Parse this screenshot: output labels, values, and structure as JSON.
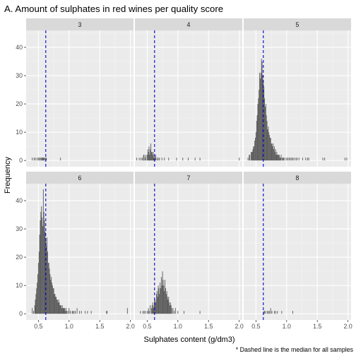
{
  "chart_data": {
    "type": "bar",
    "chart_kind": "faceted-histogram",
    "title": "A. Amount of sulphates in red wines per quality score",
    "xlabel": "Sulphates content (g/dm3)",
    "ylabel": "Frequency",
    "caption": "* Dashed line is the median for all samples",
    "xlim": [
      0.3,
      2.05
    ],
    "ylim": [
      -2.2,
      46
    ],
    "x_ticks": [
      0.5,
      1.0,
      1.5,
      2.0
    ],
    "x_tick_labels": [
      "0.5",
      "1.0",
      "1.5",
      "2.0"
    ],
    "y_ticks": [
      0,
      10,
      20,
      30,
      40
    ],
    "y_tick_labels": [
      "0",
      "10",
      "20",
      "30",
      "40"
    ],
    "bin_width": 0.01,
    "median_line": {
      "value": 0.62,
      "style": "dashed",
      "color": "#0000cc"
    },
    "grid": true,
    "colors": {
      "bar_fill": "#595959",
      "panel_background": "#ebebeb",
      "strip_background": "#d9d9d9",
      "grid_major": "#ffffff",
      "grid_minor": "#f5f5f5"
    },
    "facets": [
      {
        "label": "3",
        "x": [
          0.4,
          0.43,
          0.45,
          0.48,
          0.5,
          0.52,
          0.53,
          0.55,
          0.56,
          0.57,
          0.58,
          0.59,
          0.6,
          0.62,
          0.63,
          0.86
        ],
        "y": [
          1,
          1,
          1,
          1,
          1,
          1,
          1,
          1,
          1,
          1,
          1,
          1,
          1,
          1,
          1,
          1
        ]
      },
      {
        "label": "4",
        "x": [
          0.33,
          0.37,
          0.4,
          0.42,
          0.44,
          0.45,
          0.47,
          0.48,
          0.5,
          0.51,
          0.52,
          0.53,
          0.54,
          0.55,
          0.56,
          0.57,
          0.58,
          0.59,
          0.6,
          0.61,
          0.62,
          0.63,
          0.64,
          0.66,
          0.68,
          0.7,
          0.74,
          0.78,
          0.85,
          0.98,
          1.08,
          1.17,
          1.28,
          1.36,
          2.0
        ],
        "y": [
          1,
          1,
          1,
          1,
          2,
          2,
          1,
          2,
          2,
          4,
          3,
          5,
          2,
          4,
          6,
          3,
          3,
          2,
          3,
          1,
          2,
          1,
          2,
          1,
          1,
          1,
          1,
          1,
          1,
          1,
          1,
          1,
          1,
          1,
          1
        ]
      },
      {
        "label": "5",
        "x": [
          0.37,
          0.39,
          0.4,
          0.42,
          0.43,
          0.44,
          0.45,
          0.46,
          0.47,
          0.48,
          0.49,
          0.5,
          0.51,
          0.52,
          0.53,
          0.54,
          0.55,
          0.56,
          0.57,
          0.58,
          0.59,
          0.6,
          0.61,
          0.62,
          0.63,
          0.64,
          0.65,
          0.66,
          0.67,
          0.68,
          0.69,
          0.7,
          0.71,
          0.72,
          0.73,
          0.74,
          0.75,
          0.76,
          0.77,
          0.78,
          0.79,
          0.8,
          0.81,
          0.82,
          0.83,
          0.84,
          0.85,
          0.86,
          0.87,
          0.88,
          0.89,
          0.9,
          0.91,
          0.93,
          0.94,
          0.95,
          0.97,
          1.0,
          1.02,
          1.04,
          1.06,
          1.08,
          1.1,
          1.12,
          1.15,
          1.17,
          1.2,
          1.26,
          1.31,
          1.34,
          1.36,
          1.59,
          1.62,
          1.95,
          1.98
        ],
        "y": [
          1,
          2,
          2,
          3,
          3,
          3,
          4,
          5,
          5,
          7,
          8,
          10,
          14,
          16,
          20,
          22,
          25,
          31,
          29,
          31,
          36,
          35,
          30,
          28,
          26,
          22,
          19,
          20,
          16,
          14,
          11,
          12,
          10,
          9,
          8,
          8,
          6,
          6,
          5,
          6,
          4,
          5,
          3,
          4,
          2,
          3,
          2,
          2,
          2,
          2,
          1,
          1,
          2,
          1,
          1,
          1,
          1,
          1,
          1,
          1,
          1,
          1,
          1,
          1,
          1,
          1,
          1,
          1,
          1,
          1,
          1,
          1,
          1,
          1,
          1
        ]
      },
      {
        "label": "6",
        "x": [
          0.4,
          0.42,
          0.44,
          0.45,
          0.46,
          0.47,
          0.48,
          0.49,
          0.5,
          0.51,
          0.52,
          0.53,
          0.54,
          0.55,
          0.56,
          0.57,
          0.58,
          0.59,
          0.6,
          0.61,
          0.62,
          0.63,
          0.64,
          0.65,
          0.66,
          0.67,
          0.68,
          0.69,
          0.7,
          0.71,
          0.72,
          0.73,
          0.74,
          0.75,
          0.76,
          0.77,
          0.78,
          0.79,
          0.8,
          0.81,
          0.82,
          0.83,
          0.84,
          0.85,
          0.86,
          0.87,
          0.88,
          0.89,
          0.9,
          0.91,
          0.92,
          0.93,
          0.94,
          0.95,
          0.96,
          0.98,
          1.0,
          1.02,
          1.05,
          1.06,
          1.08,
          1.1,
          1.13,
          1.17,
          1.2,
          1.26,
          1.3,
          1.36,
          1.61,
          1.62,
          1.95
        ],
        "y": [
          2,
          1,
          3,
          5,
          7,
          9,
          11,
          14,
          18,
          22,
          28,
          33,
          36,
          38,
          34,
          31,
          44,
          36,
          33,
          29,
          26,
          24,
          27,
          22,
          18,
          18,
          16,
          14,
          12,
          13,
          11,
          10,
          9,
          9,
          7,
          7,
          6,
          6,
          5,
          5,
          4,
          5,
          4,
          3,
          3,
          3,
          2,
          3,
          2,
          2,
          2,
          2,
          1,
          2,
          1,
          1,
          2,
          1,
          1,
          1,
          1,
          1,
          2,
          1,
          1,
          1,
          1,
          1,
          1,
          1,
          2
        ]
      },
      {
        "label": "7",
        "x": [
          0.39,
          0.43,
          0.45,
          0.47,
          0.5,
          0.52,
          0.53,
          0.55,
          0.57,
          0.58,
          0.59,
          0.6,
          0.61,
          0.62,
          0.63,
          0.64,
          0.65,
          0.66,
          0.67,
          0.68,
          0.69,
          0.7,
          0.71,
          0.72,
          0.73,
          0.74,
          0.75,
          0.76,
          0.77,
          0.78,
          0.79,
          0.8,
          0.81,
          0.82,
          0.83,
          0.84,
          0.85,
          0.86,
          0.87,
          0.88,
          0.89,
          0.9,
          0.92,
          0.94,
          0.96,
          1.0,
          1.1,
          1.36
        ],
        "y": [
          1,
          1,
          1,
          1,
          1,
          2,
          1,
          3,
          2,
          3,
          4,
          2,
          3,
          5,
          5,
          4,
          7,
          8,
          6,
          10,
          9,
          7,
          11,
          9,
          13,
          10,
          15,
          12,
          10,
          8,
          12,
          9,
          7,
          8,
          6,
          5,
          6,
          4,
          3,
          4,
          3,
          2,
          2,
          1,
          2,
          1,
          1,
          1
        ]
      },
      {
        "label": "8",
        "x": [
          0.63,
          0.64,
          0.66,
          0.69,
          0.7,
          0.72,
          0.74,
          0.76,
          0.8,
          0.82,
          0.85,
          0.92,
          1.1
        ],
        "y": [
          1,
          1,
          1,
          1,
          1,
          1,
          2,
          1,
          1,
          1,
          1,
          1,
          1
        ]
      }
    ]
  }
}
